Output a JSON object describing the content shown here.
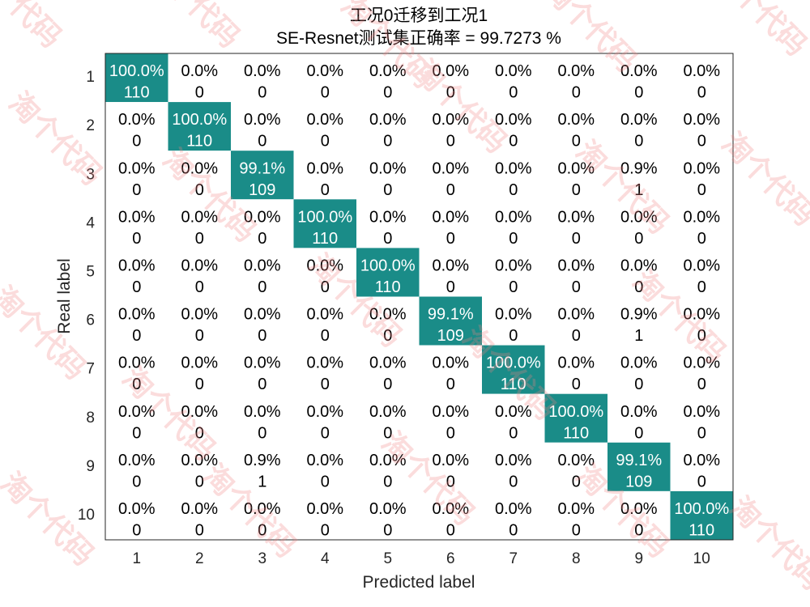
{
  "chart_data": {
    "type": "heatmap",
    "title": "工况0迁移到工况1",
    "subtitle": "SE-Resnet测试集正确率 = 99.7273 %",
    "xlabel": "Predicted label",
    "ylabel": "Real label",
    "row_labels": [
      "1",
      "2",
      "3",
      "4",
      "5",
      "6",
      "7",
      "8",
      "9",
      "10"
    ],
    "col_labels": [
      "1",
      "2",
      "3",
      "4",
      "5",
      "6",
      "7",
      "8",
      "9",
      "10"
    ],
    "counts": [
      [
        110,
        0,
        0,
        0,
        0,
        0,
        0,
        0,
        0,
        0
      ],
      [
        0,
        110,
        0,
        0,
        0,
        0,
        0,
        0,
        0,
        0
      ],
      [
        0,
        0,
        109,
        0,
        0,
        0,
        0,
        0,
        1,
        0
      ],
      [
        0,
        0,
        0,
        110,
        0,
        0,
        0,
        0,
        0,
        0
      ],
      [
        0,
        0,
        0,
        0,
        110,
        0,
        0,
        0,
        0,
        0
      ],
      [
        0,
        0,
        0,
        0,
        0,
        109,
        0,
        0,
        1,
        0
      ],
      [
        0,
        0,
        0,
        0,
        0,
        0,
        110,
        0,
        0,
        0
      ],
      [
        0,
        0,
        0,
        0,
        0,
        0,
        0,
        110,
        0,
        0
      ],
      [
        0,
        0,
        1,
        0,
        0,
        0,
        0,
        0,
        109,
        0
      ],
      [
        0,
        0,
        0,
        0,
        0,
        0,
        0,
        0,
        0,
        110
      ]
    ],
    "percents": [
      [
        "100.0%",
        "0.0%",
        "0.0%",
        "0.0%",
        "0.0%",
        "0.0%",
        "0.0%",
        "0.0%",
        "0.0%",
        "0.0%"
      ],
      [
        "0.0%",
        "100.0%",
        "0.0%",
        "0.0%",
        "0.0%",
        "0.0%",
        "0.0%",
        "0.0%",
        "0.0%",
        "0.0%"
      ],
      [
        "0.0%",
        "0.0%",
        "99.1%",
        "0.0%",
        "0.0%",
        "0.0%",
        "0.0%",
        "0.0%",
        "0.9%",
        "0.0%"
      ],
      [
        "0.0%",
        "0.0%",
        "0.0%",
        "100.0%",
        "0.0%",
        "0.0%",
        "0.0%",
        "0.0%",
        "0.0%",
        "0.0%"
      ],
      [
        "0.0%",
        "0.0%",
        "0.0%",
        "0.0%",
        "100.0%",
        "0.0%",
        "0.0%",
        "0.0%",
        "0.0%",
        "0.0%"
      ],
      [
        "0.0%",
        "0.0%",
        "0.0%",
        "0.0%",
        "0.0%",
        "99.1%",
        "0.0%",
        "0.0%",
        "0.9%",
        "0.0%"
      ],
      [
        "0.0%",
        "0.0%",
        "0.0%",
        "0.0%",
        "0.0%",
        "0.0%",
        "100.0%",
        "0.0%",
        "0.0%",
        "0.0%"
      ],
      [
        "0.0%",
        "0.0%",
        "0.0%",
        "0.0%",
        "0.0%",
        "0.0%",
        "0.0%",
        "100.0%",
        "0.0%",
        "0.0%"
      ],
      [
        "0.0%",
        "0.0%",
        "0.9%",
        "0.0%",
        "0.0%",
        "0.0%",
        "0.0%",
        "0.0%",
        "99.1%",
        "0.0%"
      ],
      [
        "0.0%",
        "0.0%",
        "0.0%",
        "0.0%",
        "0.0%",
        "0.0%",
        "0.0%",
        "0.0%",
        "0.0%",
        "100.0%"
      ]
    ],
    "colors": {
      "diagonal_fill": "#1a8c88",
      "off_diagonal_fill": "#ffffff",
      "text_on_fill": "#ffffff",
      "text_default": "#000000",
      "axis": "#262626",
      "watermark": "#f08080"
    },
    "watermark_text": "淘个代码",
    "grid": false
  }
}
